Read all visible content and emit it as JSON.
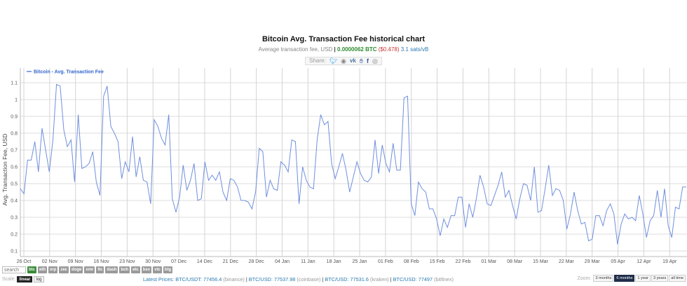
{
  "header": {
    "title": "Bitcoin Avg. Transaction Fee historical chart",
    "subtitle_prefix": "Average transaction fee, USD",
    "subtitle_sep": "|",
    "btc_value": "0.0000062 BTC",
    "usd_value": "($0.478)",
    "sats_value": "3.1 sats/vB",
    "share_label": "Share:",
    "share_icons": [
      "twitter-icon",
      "reddit-icon",
      "vk-icon",
      "like-icon",
      "facebook-icon",
      "weibo-icon"
    ]
  },
  "controls": {
    "search_placeholder": "search",
    "coins": [
      "btc",
      "eth",
      "xrp",
      "zec",
      "doge",
      "xmr",
      "ltc",
      "dash",
      "bch",
      "etc",
      "bsv",
      "vtc",
      "btg"
    ],
    "active_coin": "btc",
    "scale_label": "Scale:",
    "scale_options": [
      "linear",
      "log"
    ],
    "active_scale": "linear",
    "zoom_label": "Zoom:",
    "zoom_options": [
      "3 months",
      "6 months",
      "1 year",
      "3 years",
      "all time"
    ],
    "active_zoom": "6 months"
  },
  "prices": {
    "label": "Latest Prices:",
    "items": [
      {
        "pair": "BTC/USDT:",
        "value": "77456.4",
        "exchange": "(binance)"
      },
      {
        "pair": "BTC/USD:",
        "value": "77537.98",
        "exchange": "(coinbase)"
      },
      {
        "pair": "BTC/USD:",
        "value": "77531.6",
        "exchange": "(kraken)"
      },
      {
        "pair": "BTC/USD:",
        "value": "77497",
        "exchange": "(bitfinex)"
      }
    ]
  },
  "colors": {
    "line": "#6f8fde",
    "legend_text": "#3366cc",
    "grid": "#d8d8d8",
    "btc_green": "#2e8b2e",
    "usd_red": "#cc3333",
    "sats_blue": "#2a7ab0"
  },
  "chart_data": {
    "type": "line",
    "title": "Bitcoin Avg. Transaction Fee historical chart",
    "xlabel": "",
    "ylabel": "Avg. Transaction Fee, USD",
    "legend": [
      "Bitcoin - Avg. Transaction Fee"
    ],
    "legend_position": "top-left",
    "grid": true,
    "ylim": [
      0.05,
      1.15
    ],
    "yticks": [
      0.1,
      0.2,
      0.3,
      0.4,
      0.5,
      0.6,
      0.7,
      0.8,
      0.9,
      1,
      1.1
    ],
    "xticks": [
      "26 Oct",
      "02 Nov",
      "09 Nov",
      "16 Nov",
      "23 Nov",
      "30 Nov",
      "07 Dec",
      "14 Dec",
      "21 Dec",
      "28 Dec",
      "04 Jan",
      "11 Jan",
      "18 Jan",
      "25 Jan",
      "01 Feb",
      "08 Feb",
      "15 Feb",
      "22 Feb",
      "01 Mar",
      "08 Mar",
      "15 Mar",
      "22 Mar",
      "29 Mar",
      "05 Apr",
      "12 Apr",
      "19 Apr"
    ],
    "x_start": "23 Oct",
    "x_end": "22 Apr",
    "series": [
      {
        "name": "Bitcoin - Avg. Transaction Fee",
        "values": [
          0.47,
          0.44,
          0.64,
          0.64,
          0.75,
          0.57,
          0.83,
          0.7,
          0.57,
          0.76,
          1.09,
          1.08,
          0.82,
          0.72,
          0.76,
          0.51,
          0.91,
          0.59,
          0.6,
          0.62,
          0.69,
          0.51,
          0.43,
          1.02,
          1.08,
          0.84,
          0.8,
          0.75,
          0.53,
          0.63,
          0.57,
          0.78,
          0.54,
          0.66,
          0.52,
          0.51,
          0.38,
          0.88,
          0.84,
          0.77,
          0.73,
          0.91,
          0.41,
          0.33,
          0.42,
          0.61,
          0.46,
          0.52,
          0.62,
          0.4,
          0.41,
          0.63,
          0.52,
          0.55,
          0.52,
          0.57,
          0.45,
          0.4,
          0.53,
          0.52,
          0.48,
          0.4,
          0.4,
          0.39,
          0.35,
          0.45,
          0.71,
          0.69,
          0.42,
          0.52,
          0.47,
          0.46,
          0.63,
          0.61,
          0.57,
          0.76,
          0.75,
          0.38,
          0.6,
          0.52,
          0.48,
          0.47,
          0.76,
          0.91,
          0.85,
          0.87,
          0.62,
          0.53,
          0.6,
          0.68,
          0.58,
          0.45,
          0.54,
          0.63,
          0.56,
          0.52,
          0.51,
          0.54,
          0.76,
          0.56,
          0.73,
          0.62,
          0.57,
          0.74,
          0.58,
          0.58,
          1.01,
          1.02,
          0.38,
          0.31,
          0.51,
          0.47,
          0.45,
          0.35,
          0.35,
          0.29,
          0.19,
          0.29,
          0.24,
          0.31,
          0.31,
          0.42,
          0.42,
          0.24,
          0.38,
          0.3,
          0.41,
          0.55,
          0.48,
          0.38,
          0.37,
          0.43,
          0.49,
          0.57,
          0.42,
          0.46,
          0.37,
          0.29,
          0.41,
          0.5,
          0.49,
          0.4,
          0.6,
          0.33,
          0.34,
          0.47,
          0.61,
          0.43,
          0.47,
          0.46,
          0.4,
          0.23,
          0.32,
          0.45,
          0.34,
          0.26,
          0.27,
          0.16,
          0.17,
          0.31,
          0.31,
          0.25,
          0.34,
          0.38,
          0.32,
          0.14,
          0.26,
          0.32,
          0.29,
          0.3,
          0.28,
          0.43,
          0.32,
          0.18,
          0.28,
          0.31,
          0.46,
          0.3,
          0.47,
          0.25,
          0.18,
          0.36,
          0.35,
          0.48,
          0.48
        ]
      }
    ]
  }
}
